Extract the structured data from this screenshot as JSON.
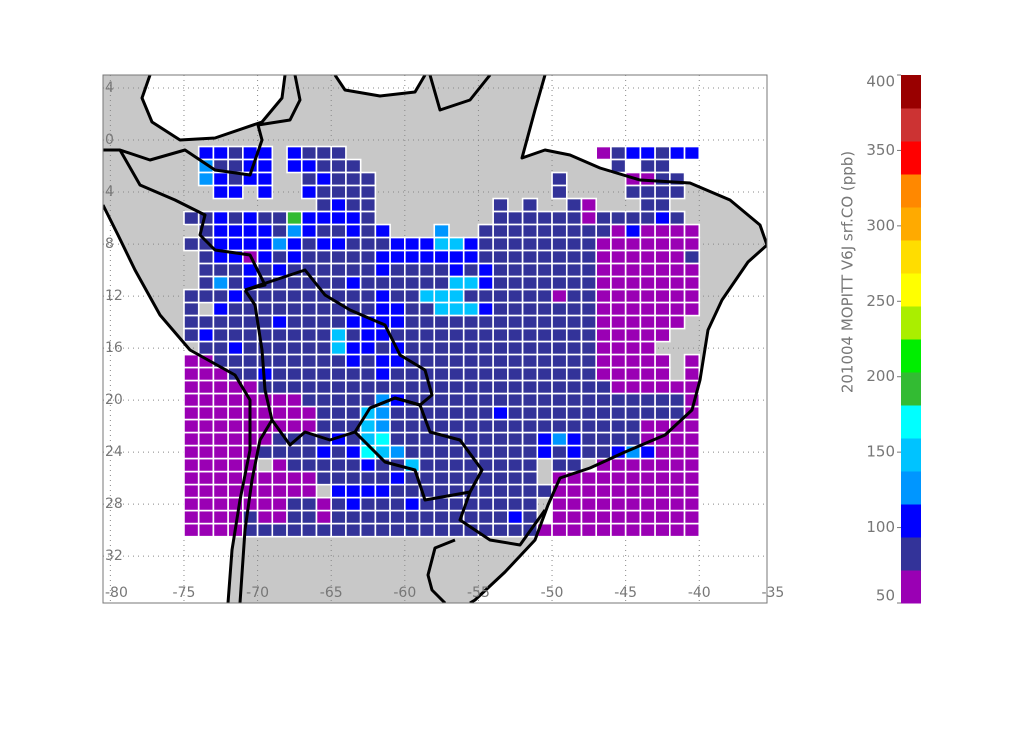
{
  "chart_data": {
    "type": "heatmap",
    "x": [
      -74.5,
      -73.5,
      -72.5,
      -71.5,
      -70.5,
      -69.5,
      -68.5,
      -67.5,
      -66.5,
      -65.5,
      -64.5,
      -63.5,
      -62.5,
      -61.5,
      -60.5,
      -59.5,
      -58.5,
      -57.5,
      -56.5,
      -55.5,
      -54.5,
      -53.5,
      -52.5,
      -51.5,
      -50.5,
      -49.5,
      -48.5,
      -47.5,
      -46.5,
      -45.5,
      -44.5,
      -43.5,
      -42.5,
      -41.5,
      -40.5
    ],
    "y": [
      -1,
      -2,
      -3,
      -4,
      -5,
      -6,
      -7,
      -8,
      -9,
      -10,
      -11,
      -12,
      -13,
      -14,
      -15,
      -16,
      -17,
      -18,
      -19,
      -20,
      -21,
      -22,
      -23,
      -24,
      -25,
      -26,
      -27,
      -28,
      -29,
      -30
    ],
    "values": [
      [
        null,
        105,
        105,
        83,
        105,
        105,
        null,
        105,
        83,
        83,
        83,
        null,
        null,
        null,
        null,
        null,
        null,
        null,
        null,
        null,
        null,
        null,
        null,
        null,
        null,
        null,
        null,
        null,
        61,
        83,
        105,
        105,
        83,
        105,
        105
      ],
      [
        null,
        126,
        83,
        83,
        105,
        105,
        null,
        105,
        105,
        83,
        83,
        83,
        null,
        null,
        null,
        null,
        null,
        null,
        null,
        null,
        null,
        null,
        null,
        null,
        null,
        null,
        null,
        null,
        null,
        83,
        null,
        83,
        83,
        null,
        null
      ],
      [
        null,
        126,
        105,
        83,
        105,
        105,
        null,
        null,
        83,
        105,
        83,
        83,
        83,
        null,
        null,
        null,
        null,
        null,
        null,
        null,
        null,
        null,
        null,
        null,
        null,
        83,
        null,
        null,
        null,
        null,
        61,
        61,
        83,
        83,
        null
      ],
      [
        null,
        null,
        105,
        105,
        null,
        105,
        null,
        null,
        105,
        83,
        83,
        83,
        83,
        null,
        null,
        null,
        null,
        null,
        null,
        null,
        null,
        null,
        null,
        null,
        null,
        83,
        null,
        null,
        null,
        null,
        83,
        83,
        83,
        83,
        null
      ],
      [
        null,
        null,
        null,
        null,
        null,
        null,
        null,
        null,
        null,
        83,
        105,
        83,
        83,
        null,
        null,
        null,
        null,
        null,
        null,
        null,
        null,
        83,
        null,
        83,
        null,
        null,
        83,
        61,
        null,
        null,
        null,
        83,
        83,
        null,
        null
      ],
      [
        83,
        83,
        105,
        83,
        105,
        83,
        83,
        192,
        105,
        105,
        105,
        105,
        83,
        null,
        null,
        null,
        null,
        null,
        null,
        null,
        null,
        83,
        83,
        83,
        83,
        83,
        83,
        61,
        83,
        83,
        83,
        83,
        105,
        83,
        null
      ],
      [
        null,
        83,
        105,
        105,
        105,
        105,
        83,
        126,
        105,
        83,
        83,
        105,
        83,
        105,
        null,
        null,
        null,
        126,
        null,
        null,
        83,
        83,
        83,
        83,
        83,
        83,
        83,
        83,
        83,
        61,
        105,
        61,
        61,
        61,
        61
      ],
      [
        83,
        83,
        105,
        105,
        105,
        105,
        126,
        105,
        83,
        105,
        105,
        83,
        83,
        83,
        105,
        105,
        105,
        148,
        148,
        105,
        83,
        83,
        83,
        83,
        83,
        83,
        83,
        83,
        61,
        61,
        61,
        61,
        61,
        61,
        61
      ],
      [
        null,
        83,
        105,
        105,
        61,
        105,
        83,
        105,
        83,
        83,
        83,
        83,
        83,
        105,
        105,
        105,
        105,
        105,
        105,
        105,
        83,
        83,
        83,
        83,
        83,
        83,
        83,
        83,
        61,
        61,
        61,
        61,
        61,
        61,
        83
      ],
      [
        null,
        83,
        83,
        83,
        105,
        83,
        105,
        83,
        83,
        83,
        83,
        83,
        83,
        105,
        83,
        83,
        83,
        83,
        105,
        83,
        105,
        83,
        83,
        83,
        83,
        83,
        83,
        83,
        61,
        61,
        61,
        61,
        61,
        61,
        61
      ],
      [
        null,
        83,
        126,
        83,
        105,
        83,
        83,
        83,
        83,
        83,
        83,
        105,
        83,
        83,
        83,
        83,
        83,
        83,
        148,
        148,
        105,
        83,
        83,
        83,
        83,
        83,
        83,
        83,
        61,
        61,
        61,
        61,
        61,
        61,
        61
      ],
      [
        83,
        83,
        83,
        105,
        83,
        83,
        83,
        83,
        83,
        83,
        83,
        83,
        83,
        105,
        83,
        83,
        148,
        148,
        148,
        83,
        83,
        83,
        83,
        83,
        83,
        61,
        83,
        83,
        61,
        61,
        61,
        61,
        61,
        61,
        61
      ],
      [
        83,
        null,
        105,
        83,
        83,
        83,
        83,
        83,
        83,
        83,
        83,
        83,
        83,
        105,
        105,
        83,
        83,
        148,
        148,
        148,
        105,
        83,
        83,
        83,
        83,
        83,
        83,
        83,
        61,
        61,
        61,
        61,
        61,
        61,
        61
      ],
      [
        83,
        83,
        83,
        83,
        83,
        83,
        105,
        83,
        83,
        83,
        83,
        105,
        105,
        105,
        105,
        83,
        83,
        83,
        83,
        83,
        83,
        83,
        83,
        83,
        83,
        83,
        83,
        83,
        61,
        61,
        61,
        61,
        61,
        61,
        null
      ],
      [
        83,
        105,
        83,
        83,
        83,
        83,
        83,
        83,
        83,
        83,
        148,
        83,
        105,
        105,
        83,
        83,
        83,
        83,
        83,
        83,
        83,
        83,
        83,
        83,
        83,
        83,
        83,
        83,
        61,
        61,
        61,
        61,
        61,
        null,
        null
      ],
      [
        null,
        83,
        83,
        105,
        83,
        83,
        83,
        83,
        83,
        83,
        148,
        105,
        105,
        83,
        105,
        83,
        83,
        83,
        83,
        83,
        83,
        83,
        83,
        83,
        83,
        83,
        83,
        83,
        61,
        61,
        61,
        61,
        null,
        null,
        null
      ],
      [
        61,
        61,
        83,
        83,
        83,
        83,
        83,
        83,
        83,
        83,
        83,
        105,
        83,
        105,
        105,
        83,
        83,
        83,
        83,
        83,
        83,
        83,
        83,
        83,
        83,
        83,
        83,
        83,
        61,
        61,
        61,
        61,
        61,
        null,
        61
      ],
      [
        61,
        61,
        61,
        83,
        83,
        105,
        83,
        83,
        83,
        83,
        83,
        83,
        83,
        105,
        83,
        83,
        83,
        83,
        83,
        83,
        83,
        83,
        83,
        83,
        83,
        83,
        83,
        83,
        61,
        61,
        61,
        61,
        61,
        null,
        61
      ],
      [
        61,
        61,
        61,
        61,
        61,
        83,
        83,
        83,
        83,
        83,
        83,
        83,
        83,
        83,
        83,
        83,
        83,
        83,
        83,
        83,
        83,
        83,
        83,
        83,
        83,
        83,
        83,
        83,
        83,
        61,
        61,
        61,
        61,
        61,
        61
      ],
      [
        61,
        61,
        61,
        61,
        61,
        61,
        61,
        61,
        83,
        83,
        83,
        83,
        83,
        126,
        105,
        83,
        83,
        83,
        83,
        83,
        83,
        83,
        83,
        83,
        83,
        83,
        83,
        83,
        83,
        83,
        83,
        83,
        83,
        83,
        61
      ],
      [
        61,
        61,
        61,
        61,
        61,
        61,
        61,
        61,
        61,
        83,
        83,
        83,
        148,
        126,
        83,
        83,
        83,
        83,
        83,
        83,
        83,
        105,
        83,
        83,
        83,
        83,
        83,
        83,
        83,
        83,
        83,
        83,
        83,
        83,
        61
      ],
      [
        61,
        61,
        61,
        61,
        61,
        61,
        61,
        61,
        61,
        83,
        83,
        83,
        148,
        126,
        83,
        83,
        83,
        83,
        83,
        83,
        83,
        83,
        83,
        83,
        83,
        83,
        83,
        83,
        83,
        83,
        83,
        61,
        61,
        61,
        61
      ],
      [
        61,
        61,
        61,
        61,
        61,
        61,
        83,
        83,
        83,
        83,
        105,
        83,
        148,
        170,
        83,
        83,
        83,
        83,
        83,
        83,
        83,
        83,
        83,
        83,
        105,
        126,
        105,
        83,
        83,
        83,
        83,
        61,
        61,
        61,
        61
      ],
      [
        61,
        61,
        61,
        61,
        61,
        83,
        83,
        83,
        83,
        105,
        83,
        105,
        170,
        148,
        126,
        83,
        83,
        83,
        83,
        83,
        83,
        83,
        83,
        83,
        105,
        83,
        105,
        83,
        83,
        105,
        126,
        105,
        61,
        61,
        61
      ],
      [
        61,
        61,
        61,
        61,
        61,
        null,
        61,
        83,
        83,
        83,
        83,
        83,
        105,
        83,
        83,
        148,
        83,
        83,
        83,
        83,
        83,
        83,
        83,
        83,
        null,
        83,
        83,
        null,
        61,
        61,
        61,
        61,
        61,
        61,
        61
      ],
      [
        61,
        61,
        61,
        61,
        61,
        61,
        61,
        61,
        61,
        83,
        83,
        83,
        83,
        83,
        105,
        83,
        83,
        83,
        83,
        83,
        83,
        83,
        83,
        83,
        null,
        61,
        61,
        61,
        61,
        61,
        61,
        61,
        61,
        61,
        61
      ],
      [
        61,
        61,
        61,
        61,
        61,
        61,
        61,
        61,
        61,
        null,
        105,
        105,
        105,
        105,
        83,
        83,
        83,
        83,
        83,
        83,
        83,
        83,
        83,
        83,
        83,
        61,
        61,
        61,
        61,
        61,
        61,
        61,
        61,
        61,
        61
      ],
      [
        61,
        61,
        61,
        61,
        61,
        61,
        61,
        83,
        83,
        61,
        83,
        105,
        83,
        83,
        83,
        105,
        83,
        83,
        83,
        83,
        83,
        83,
        83,
        83,
        null,
        61,
        61,
        61,
        61,
        61,
        61,
        61,
        61,
        61,
        61
      ],
      [
        61,
        61,
        61,
        61,
        83,
        61,
        61,
        83,
        83,
        61,
        83,
        83,
        83,
        83,
        83,
        83,
        83,
        83,
        83,
        83,
        83,
        83,
        105,
        83,
        null,
        61,
        61,
        61,
        61,
        61,
        61,
        61,
        61,
        61,
        61
      ],
      [
        61,
        61,
        61,
        61,
        83,
        83,
        83,
        83,
        83,
        83,
        83,
        83,
        83,
        83,
        83,
        83,
        83,
        83,
        83,
        83,
        83,
        83,
        83,
        83,
        61,
        61,
        61,
        61,
        61,
        61,
        61,
        61,
        61,
        61,
        61
      ]
    ],
    "xlim": [
      -80.5,
      -35.4
    ],
    "ylim": [
      -35.6,
      5
    ],
    "xticks": [
      -80,
      -75,
      -70,
      -65,
      -60,
      -55,
      -50,
      -45,
      -40,
      -35
    ],
    "yticks": [
      4,
      0,
      {
        "value": -4,
        "label": "4"
      },
      {
        "value": -8,
        "label": "8"
      },
      {
        "value": -12,
        "label": "12"
      },
      {
        "value": -16,
        "label": "16"
      },
      {
        "value": -20,
        "label": "20"
      },
      {
        "value": -24,
        "label": "24"
      },
      {
        "value": -28,
        "label": "28"
      },
      {
        "value": -32,
        "label": "32"
      }
    ],
    "grid": true,
    "colorbar": {
      "label": "201004 MOPITT V6J srf.CO (ppb)",
      "lim": [
        50,
        400
      ],
      "ticks": [
        50,
        100,
        150,
        200,
        250,
        300,
        350,
        400
      ],
      "colors": [
        "#9a00b4",
        "#333399",
        "#0000ff",
        "#0096ff",
        "#00c3ff",
        "#00ffff",
        "#33bb33",
        "#00ee00",
        "#aaee00",
        "#ffff00",
        "#ffdd00",
        "#ffaa00",
        "#ff8800",
        "#ff0000",
        "#cc3333",
        "#990000"
      ]
    }
  }
}
